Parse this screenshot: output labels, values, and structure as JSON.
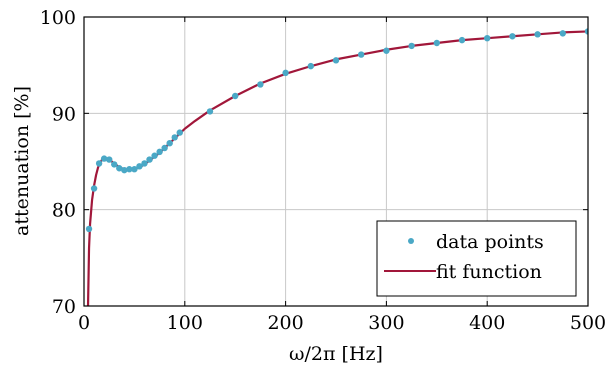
{
  "chart_data": {
    "type": "scatter",
    "xlabel": "ω/2π [Hz]",
    "ylabel": "attenuation [%]",
    "xlim": [
      0,
      500
    ],
    "ylim": [
      70,
      100
    ],
    "x_ticks": [
      0,
      100,
      200,
      300,
      400,
      500
    ],
    "y_ticks": [
      70,
      80,
      90,
      100
    ],
    "x_tick_labels": [
      "0",
      "100",
      "200",
      "300",
      "400",
      "500"
    ],
    "y_tick_labels": [
      "70",
      "80",
      "90",
      "100"
    ],
    "grid": true,
    "legend_position": "bottom-right",
    "series": [
      {
        "name": "data points",
        "kind": "scatter",
        "color": "#4aa8c6",
        "x": [
          5,
          10,
          15,
          20,
          25,
          30,
          35,
          40,
          45,
          50,
          55,
          60,
          65,
          70,
          75,
          80,
          85,
          90,
          95,
          125,
          150,
          175,
          200,
          225,
          250,
          275,
          300,
          325,
          350,
          375,
          400,
          425,
          450,
          475,
          500
        ],
        "y": [
          78.0,
          82.2,
          84.8,
          85.3,
          85.2,
          84.7,
          84.3,
          84.1,
          84.2,
          84.2,
          84.5,
          84.8,
          85.2,
          85.6,
          86.0,
          86.4,
          86.9,
          87.5,
          88.0,
          90.2,
          91.8,
          93.0,
          94.2,
          94.9,
          95.5,
          96.1,
          96.5,
          97.0,
          97.3,
          97.6,
          97.8,
          98.0,
          98.2,
          98.3,
          98.5
        ]
      },
      {
        "name": "fit function",
        "kind": "line",
        "color": "#a1173a",
        "x": [
          4,
          5,
          6,
          8,
          10,
          12,
          14,
          16,
          18,
          20,
          25,
          30,
          35,
          40,
          45,
          50,
          55,
          60,
          65,
          70,
          75,
          80,
          85,
          90,
          95,
          100,
          110,
          125,
          150,
          175,
          200,
          225,
          250,
          275,
          300,
          325,
          350,
          375,
          400,
          425,
          450,
          475,
          500
        ],
        "y": [
          70.0,
          76.0,
          78.5,
          81.0,
          82.5,
          83.6,
          84.4,
          84.9,
          85.2,
          85.3,
          85.2,
          84.8,
          84.4,
          84.2,
          84.1,
          84.2,
          84.4,
          84.7,
          85.1,
          85.5,
          85.9,
          86.4,
          86.9,
          87.4,
          87.9,
          88.4,
          89.2,
          90.3,
          91.8,
          93.1,
          94.1,
          94.9,
          95.6,
          96.1,
          96.6,
          97.0,
          97.3,
          97.6,
          97.8,
          98.0,
          98.2,
          98.4,
          98.5
        ]
      }
    ]
  }
}
